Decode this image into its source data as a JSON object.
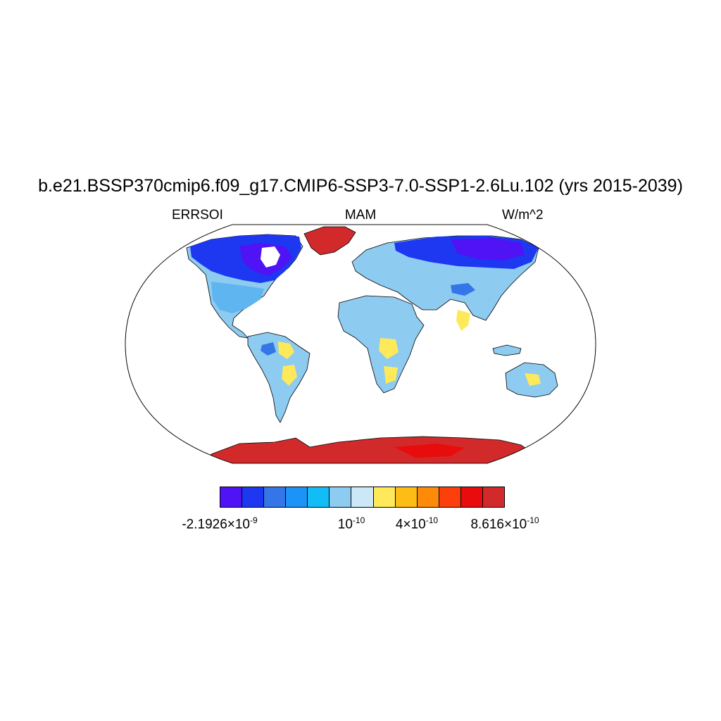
{
  "title": "b.e21.BSSP370cmip6.f09_g17.CMIP6-SSP3-7.0-SSP1-2.6Lu.102 (yrs 2015-2039)",
  "subtitle_left": "ERRSOI",
  "subtitle_center": "MAM",
  "subtitle_right": "W/m^2",
  "colors": {
    "ocean": "#ffffff",
    "outline": "#000000",
    "bins": [
      "#4f13f5",
      "#1d38f0",
      "#3476e8",
      "#1c93f6",
      "#12bdf7",
      "#8ecbf0",
      "#cce8f8",
      "#fde95a",
      "#fdbd16",
      "#fd8a08",
      "#fd3f0b",
      "#e80c0c",
      "#d22a2a"
    ]
  },
  "colorbar": {
    "labels": [
      {
        "mantissa": "-2.1926×10",
        "exponent": "-9"
      },
      {
        "mantissa": "10",
        "exponent": "-10"
      },
      {
        "mantissa": "4×10",
        "exponent": "-10"
      },
      {
        "mantissa": "8.616×10",
        "exponent": "-10"
      }
    ]
  }
}
